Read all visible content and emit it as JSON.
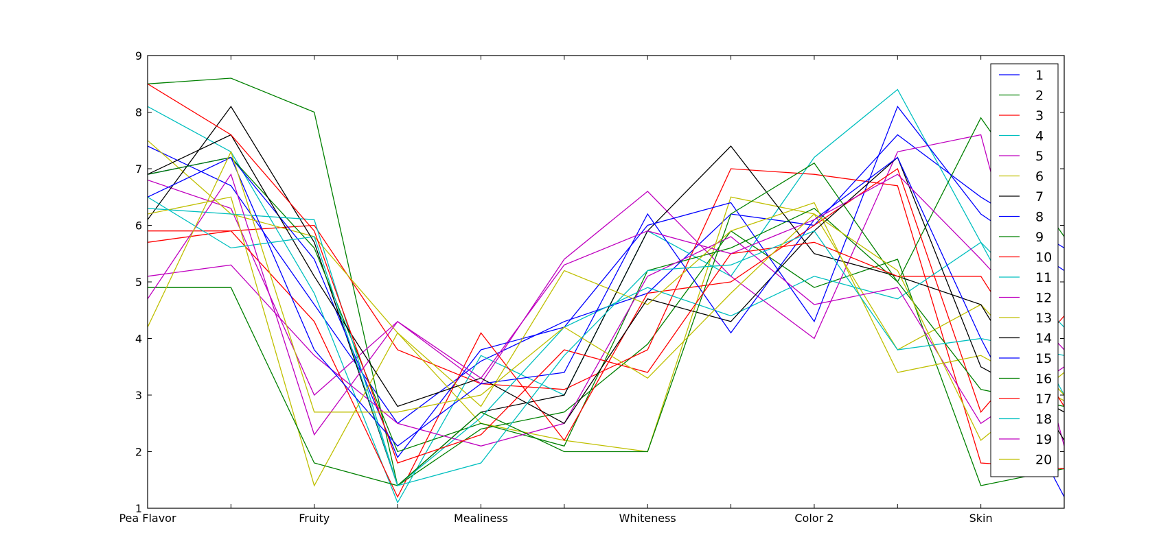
{
  "chart_data": {
    "type": "line",
    "title": "",
    "xlabel": "",
    "ylabel": "",
    "x_tick_labels": [
      "Pea Flavor",
      "Fruity",
      "Mealiness",
      "Whiteness",
      "Color 2",
      "Skin"
    ],
    "categories": [
      "Pea Flavor",
      "",
      "Fruity",
      "",
      "Mealiness",
      "",
      "Whiteness",
      "",
      "Color 2",
      "",
      "Skin",
      ""
    ],
    "ylim": [
      1,
      9
    ],
    "y_ticks": [
      1,
      2,
      3,
      4,
      5,
      6,
      7,
      8,
      9
    ],
    "grid": false,
    "legend_position": "top-right",
    "series": [
      {
        "name": "1",
        "color": "#0000ff",
        "values": [
          7.4,
          6.7,
          4.6,
          2.5,
          3.6,
          4.3,
          4.8,
          6.2,
          6.0,
          7.6,
          6.5,
          5.6
        ]
      },
      {
        "name": "2",
        "color": "#008000",
        "values": [
          8.5,
          8.6,
          8.0,
          1.4,
          2.4,
          2.7,
          3.9,
          5.9,
          4.9,
          5.4,
          1.4,
          1.7
        ]
      },
      {
        "name": "3",
        "color": "#ff0000",
        "values": [
          5.7,
          5.9,
          6.0,
          3.8,
          3.2,
          3.1,
          3.8,
          7.0,
          6.9,
          6.7,
          1.8,
          1.7
        ]
      },
      {
        "name": "4",
        "color": "#00bfbf",
        "values": [
          8.1,
          7.3,
          4.8,
          1.1,
          3.7,
          3.0,
          5.9,
          5.1,
          7.2,
          8.4,
          5.7,
          3.0
        ]
      },
      {
        "name": "5",
        "color": "#bf00bf",
        "values": [
          6.8,
          6.3,
          3.0,
          4.3,
          3.2,
          5.4,
          6.6,
          5.1,
          4.0,
          7.3,
          7.6,
          2.1
        ]
      },
      {
        "name": "6",
        "color": "#bfbf00",
        "values": [
          7.5,
          6.2,
          5.8,
          4.1,
          2.5,
          2.2,
          2.0,
          6.5,
          6.2,
          3.8,
          4.6,
          3.0
        ]
      },
      {
        "name": "7",
        "color": "#000000",
        "values": [
          6.1,
          8.1,
          5.7,
          1.4,
          2.7,
          3.0,
          5.9,
          7.4,
          5.5,
          5.1,
          4.6,
          2.2
        ]
      },
      {
        "name": "8",
        "color": "#0000ff",
        "values": [
          6.9,
          7.2,
          5.4,
          1.9,
          3.8,
          4.2,
          6.0,
          6.4,
          4.3,
          8.1,
          6.2,
          5.2
        ]
      },
      {
        "name": "9",
        "color": "#008000",
        "values": [
          6.9,
          7.2,
          5.6,
          2.0,
          2.5,
          2.1,
          5.2,
          5.6,
          6.3,
          5.0,
          7.9,
          5.8
        ]
      },
      {
        "name": "10",
        "color": "#ff0000",
        "values": [
          5.9,
          5.9,
          4.3,
          1.2,
          4.1,
          2.2,
          4.8,
          5.0,
          6.0,
          7.0,
          2.7,
          4.4
        ]
      },
      {
        "name": "11",
        "color": "#00bfbf",
        "values": [
          6.3,
          6.2,
          6.1,
          1.4,
          2.6,
          4.2,
          4.9,
          4.4,
          5.1,
          4.7,
          5.7,
          4.2
        ]
      },
      {
        "name": "12",
        "color": "#bf00bf",
        "values": [
          5.1,
          5.3,
          3.7,
          2.5,
          2.1,
          2.5,
          5.1,
          5.8,
          4.6,
          4.9,
          2.5,
          3.5
        ]
      },
      {
        "name": "13",
        "color": "#bfbf00",
        "values": [
          6.2,
          6.5,
          1.4,
          4.1,
          2.8,
          5.2,
          4.6,
          5.9,
          6.4,
          3.4,
          3.7,
          2.9
        ]
      },
      {
        "name": "14",
        "color": "#000000",
        "values": [
          6.9,
          7.6,
          5.1,
          2.8,
          3.3,
          2.5,
          4.7,
          4.3,
          5.9,
          7.2,
          3.5,
          2.7
        ]
      },
      {
        "name": "15",
        "color": "#0000ff",
        "values": [
          6.5,
          7.2,
          3.8,
          2.1,
          3.2,
          3.4,
          6.2,
          4.1,
          6.1,
          7.2,
          4.0,
          1.2
        ]
      },
      {
        "name": "16",
        "color": "#008000",
        "values": [
          4.9,
          4.9,
          1.8,
          1.4,
          2.7,
          2.0,
          2.0,
          6.2,
          7.1,
          5.0,
          3.1,
          2.8
        ]
      },
      {
        "name": "17",
        "color": "#ff0000",
        "values": [
          8.5,
          7.6,
          5.9,
          1.8,
          2.3,
          3.8,
          3.4,
          5.5,
          5.7,
          5.1,
          5.1,
          2.8
        ]
      },
      {
        "name": "18",
        "color": "#00bfbf",
        "values": [
          6.5,
          5.6,
          5.8,
          1.4,
          1.8,
          3.7,
          5.2,
          5.3,
          5.9,
          3.8,
          4.0,
          3.7
        ]
      },
      {
        "name": "19",
        "color": "#bf00bf",
        "values": [
          4.7,
          6.9,
          2.3,
          4.3,
          3.3,
          5.3,
          5.9,
          5.5,
          6.1,
          6.9,
          5.4,
          3.8
        ]
      },
      {
        "name": "20",
        "color": "#bfbf00",
        "values": [
          4.2,
          7.3,
          2.7,
          2.7,
          3.0,
          4.2,
          3.3,
          4.8,
          6.2,
          5.2,
          2.2,
          3.4
        ]
      }
    ]
  }
}
